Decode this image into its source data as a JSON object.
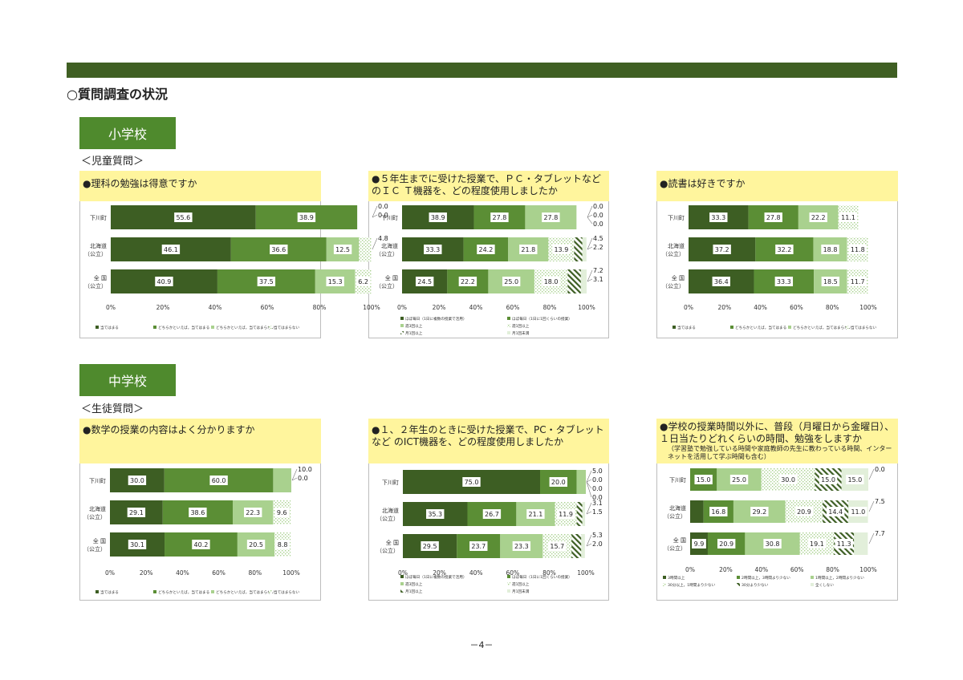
{
  "page_title": "○質問調査の状況",
  "page_number": "－4－",
  "sections": [
    {
      "label": "小学校",
      "sub": "＜児童質問＞"
    },
    {
      "label": "中学校",
      "sub": "＜生徒質問＞"
    }
  ],
  "chart_data": [
    {
      "type": "bar",
      "title": "●理科の勉強は得意ですか",
      "note": "",
      "categories": [
        "下川町",
        "北海道\n（公立）",
        "全  国\n（公立）"
      ],
      "series": [
        {
          "name": "当てはまる",
          "values": [
            55.6,
            46.1,
            40.9
          ]
        },
        {
          "name": "どちらかといえば，当てはまる",
          "values": [
            38.9,
            36.6,
            37.5
          ]
        },
        {
          "name": "どちらかといえば，当てはまらない",
          "values": [
            0.0,
            12.5,
            15.3
          ]
        },
        {
          "name": "当てはまらない",
          "values": [
            0.0,
            4.8,
            6.2
          ]
        }
      ],
      "xticks": [
        "0%",
        "20%",
        "40%",
        "60%",
        "80%",
        "100%"
      ],
      "xlim": [
        0,
        100
      ]
    },
    {
      "type": "bar",
      "title": "●５年生までに受けた授業で、ＰＣ・タブレットなどのＩＣ Ｔ機器を、どの程度使用しましたか",
      "note": "",
      "categories": [
        "下川町",
        "北海道\n（公立）",
        "全  国\n（公立）"
      ],
      "series": [
        {
          "name": "ほぼ毎日（1日に複数の授業で活用）",
          "values": [
            38.9,
            33.3,
            24.5
          ]
        },
        {
          "name": "ほぼ毎日（1日に1回くらいの授業）",
          "values": [
            27.8,
            24.2,
            22.2
          ]
        },
        {
          "name": "週3回以上",
          "values": [
            27.8,
            21.8,
            25.0
          ]
        },
        {
          "name": "週1回以上",
          "values": [
            0.0,
            13.9,
            18.0
          ]
        },
        {
          "name": "月1回以上",
          "values": [
            0.0,
            4.5,
            7.2
          ]
        },
        {
          "name": "月1回未満",
          "values": [
            0.0,
            2.2,
            3.1
          ]
        }
      ],
      "xticks": [
        "0%",
        "20%",
        "40%",
        "60%",
        "80%",
        "100%"
      ],
      "xlim": [
        0,
        100
      ]
    },
    {
      "type": "bar",
      "title": "●読書は好きですか",
      "note": "",
      "categories": [
        "下川町",
        "北海道\n（公立）",
        "全  国\n（公立）"
      ],
      "series": [
        {
          "name": "当てはまる",
          "values": [
            33.3,
            37.2,
            36.4
          ]
        },
        {
          "name": "どちらかといえば，当てはまる",
          "values": [
            27.8,
            32.2,
            33.3
          ]
        },
        {
          "name": "どちらかといえば，当てはまらない",
          "values": [
            22.2,
            18.8,
            18.5
          ]
        },
        {
          "name": "当てはまらない",
          "values": [
            11.1,
            11.8,
            11.7
          ]
        }
      ],
      "xticks": [
        "0%",
        "20%",
        "40%",
        "60%",
        "80%",
        "100%"
      ],
      "xlim": [
        0,
        100
      ]
    },
    {
      "type": "bar",
      "title": "●数学の授業の内容はよく分かりますか",
      "note": "",
      "categories": [
        "下川町",
        "北海道\n（公立）",
        "全  国\n（公立）"
      ],
      "series": [
        {
          "name": "当てはまる",
          "values": [
            30.0,
            29.1,
            30.1
          ]
        },
        {
          "name": "どちらかといえば，当てはまる",
          "values": [
            60.0,
            38.6,
            40.2
          ]
        },
        {
          "name": "どちらかといえば，当てはまらない",
          "values": [
            10.0,
            22.3,
            20.5
          ]
        },
        {
          "name": "当てはまらない",
          "values": [
            0.0,
            9.6,
            8.8
          ]
        }
      ],
      "xticks": [
        "0%",
        "20%",
        "40%",
        "60%",
        "80%",
        "100%"
      ],
      "xlim": [
        0,
        100
      ]
    },
    {
      "type": "bar",
      "title": "●１、２年生のときに受けた授業で、PC・タブレットなど のICT機器を、どの程度使用しましたか",
      "note": "",
      "categories": [
        "下川町",
        "北海道\n（公立）",
        "全  国\n（公立）"
      ],
      "series": [
        {
          "name": "ほぼ毎日（1日に複数の授業で活用）",
          "values": [
            75.0,
            35.3,
            29.5
          ]
        },
        {
          "name": "ほぼ毎日（1日に1回くらいの授業）",
          "values": [
            20.0,
            26.7,
            23.7
          ]
        },
        {
          "name": "週3回以上",
          "values": [
            5.0,
            21.1,
            23.3
          ]
        },
        {
          "name": "週1回以上",
          "values": [
            0.0,
            11.9,
            15.7
          ]
        },
        {
          "name": "月1回以上",
          "values": [
            0.0,
            3.1,
            5.3
          ]
        },
        {
          "name": "月1回未満",
          "values": [
            0.0,
            1.5,
            2.0
          ]
        }
      ],
      "xticks": [
        "0%",
        "20%",
        "40%",
        "60%",
        "80%",
        "100%"
      ],
      "xlim": [
        0,
        100
      ]
    },
    {
      "type": "bar",
      "title": "●学校の授業時間以外に、普段（月曜日から金曜日）、１日当たりどれくらいの時間、勉強をしますか",
      "note": "（学習塾で勉強している時間や家庭教師の先生に教わっている時間、インターネットを活用して学ぶ時間も含む）",
      "categories": [
        "下川町",
        "北海道\n（公立）",
        "全  国\n（公立）"
      ],
      "series": [
        {
          "name": "3時間以上",
          "values": [
            0.0,
            7.5,
            9.9
          ]
        },
        {
          "name": "2時間以上，3時間より少ない",
          "values": [
            15.0,
            16.8,
            20.9
          ]
        },
        {
          "name": "1時間以上，2時間より少ない",
          "values": [
            25.0,
            29.2,
            30.8
          ]
        },
        {
          "name": "30分以上，1時間より少ない",
          "values": [
            30.0,
            20.9,
            19.1
          ]
        },
        {
          "name": "30分より少ない",
          "values": [
            15.0,
            14.4,
            11.3
          ]
        },
        {
          "name": "全くしない",
          "values": [
            15.0,
            11.0,
            7.7
          ]
        }
      ],
      "xticks": [
        "0%",
        "20%",
        "40%",
        "60%",
        "80%",
        "100%"
      ],
      "xlim": [
        0,
        100
      ]
    }
  ]
}
